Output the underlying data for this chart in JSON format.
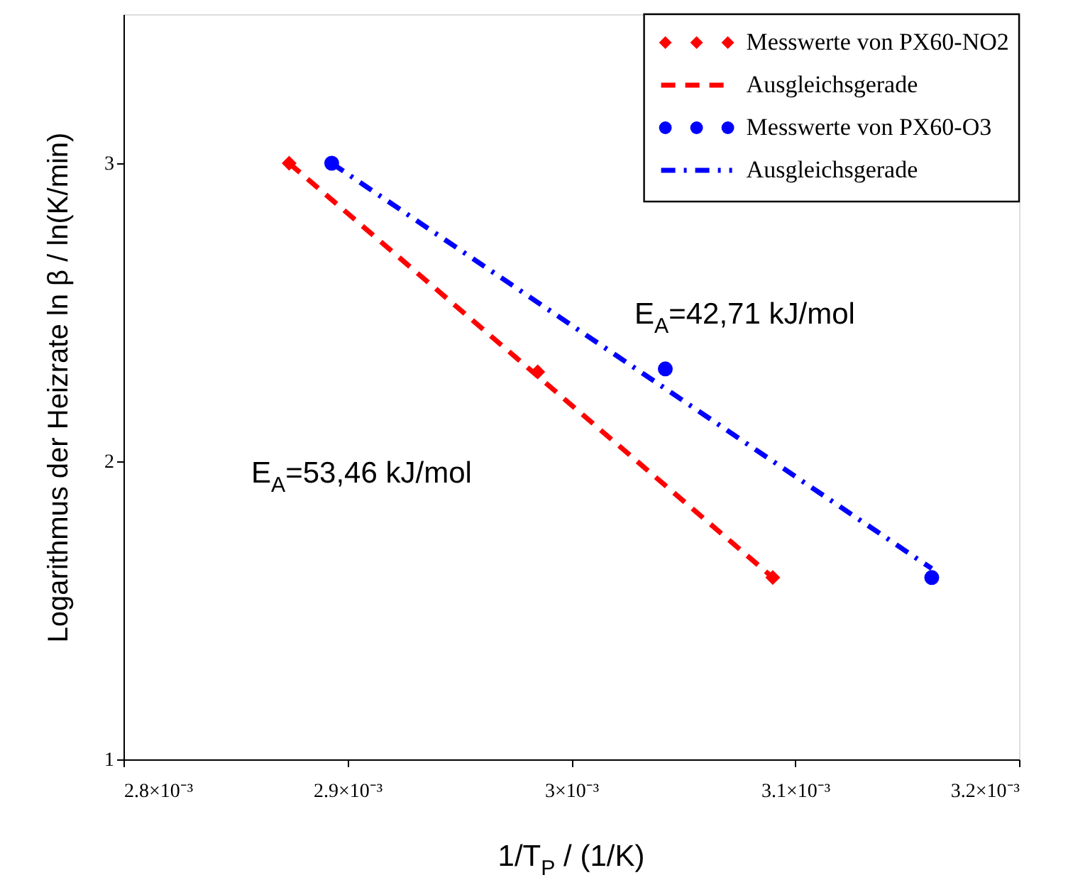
{
  "chart_data": {
    "type": "scatter",
    "xlabel": "1/T$_{P}$ / (1/K)",
    "ylabel": "Logarithmus der Heizrate ln β / ln(K/min)",
    "xlim": [
      0.0028,
      0.0032
    ],
    "xticks": [
      {
        "value": 0.0028,
        "label": "2.8×10⁻³"
      },
      {
        "value": 0.0029,
        "label": "2.9×10⁻³"
      },
      {
        "value": 0.003,
        "label": "3×10⁻³"
      },
      {
        "value": 0.0031,
        "label": "3.1×10⁻³"
      },
      {
        "value": 0.0032,
        "label": "3.2×10⁻³"
      }
    ],
    "ylim": [
      1,
      3.5
    ],
    "yticks": [
      1,
      2,
      3
    ],
    "grid": false,
    "legend": "top right",
    "series": [
      {
        "name": "Messwerte von PX60-NO2",
        "type": "scatter",
        "marker": "diamond",
        "color": "#ff0000",
        "x": [
          0.002874,
          0.002985,
          0.00309
        ],
        "values": [
          3.0,
          2.3,
          1.61
        ]
      },
      {
        "name": "Ausgleichsgerade",
        "type": "line",
        "line_style": "dashed",
        "color": "#ff0000",
        "x": [
          0.002874,
          0.00309
        ],
        "values": [
          3.0,
          1.61
        ]
      },
      {
        "name": "Messwerte von PX60-O3",
        "type": "scatter",
        "marker": "circle",
        "color": "#0000ff",
        "x": [
          0.002893,
          0.003042,
          0.003161
        ],
        "values": [
          3.0,
          2.31,
          1.61
        ]
      },
      {
        "name": "Ausgleichsgerade",
        "type": "line",
        "line_style": "dashdot",
        "color": "#0000ff",
        "x": [
          0.002893,
          0.003161
        ],
        "values": [
          3.0,
          1.64
        ]
      }
    ],
    "annotations": [
      "E$_{A}$=53,46 kJ/mol",
      "E$_{A}$=42,71 kJ/mol"
    ]
  }
}
